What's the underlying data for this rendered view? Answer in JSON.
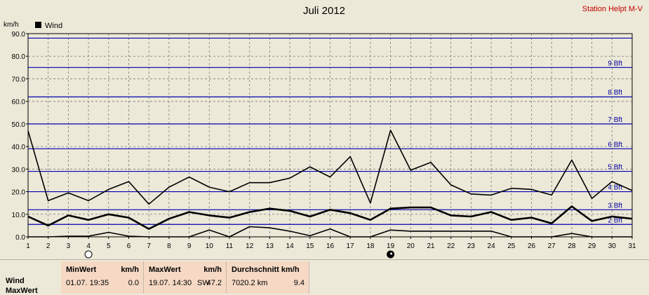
{
  "header": {
    "title": "Juli 2012",
    "station": "Station Helpt M-V"
  },
  "colors": {
    "grid_blue": "#0000b0",
    "line": "#000000",
    "panel_bg": "#f5d9c4",
    "station_text": "#c00000"
  },
  "chart_data": {
    "type": "line",
    "title": "Juli 2012",
    "ylabel": "km/h",
    "xlabel": "",
    "ylim": [
      0,
      90
    ],
    "xlim": [
      1,
      31
    ],
    "x": [
      1,
      2,
      3,
      4,
      5,
      6,
      7,
      8,
      9,
      10,
      11,
      12,
      13,
      14,
      15,
      16,
      17,
      18,
      19,
      20,
      21,
      22,
      23,
      24,
      25,
      26,
      27,
      28,
      29,
      30,
      31
    ],
    "y_ticks": [
      "0.0",
      "10.0",
      "20.0",
      "30.0",
      "40.0",
      "50.0",
      "60.0",
      "70.0",
      "80.0",
      "90.0"
    ],
    "x_ticks": [
      "1",
      "2",
      "3",
      "4",
      "5",
      "6",
      "7",
      "8",
      "9",
      "10",
      "11",
      "12",
      "13",
      "14",
      "15",
      "16",
      "17",
      "18",
      "19",
      "20",
      "21",
      "22",
      "23",
      "24",
      "25",
      "26",
      "27",
      "28",
      "29",
      "30",
      "31"
    ],
    "legend": {
      "label": "Wind",
      "position": "top-left"
    },
    "grid": true,
    "series": [
      {
        "name": "Wind",
        "role": "max",
        "values": [
          47,
          16,
          19.5,
          16,
          21,
          24.5,
          14.5,
          22,
          26.5,
          22,
          20,
          24,
          24,
          26,
          31,
          26.5,
          35.5,
          15,
          47.2,
          29.5,
          33,
          23,
          19,
          18.5,
          21.5,
          21,
          18.5,
          34,
          17,
          24.5,
          20.5
        ]
      },
      {
        "role": "avg",
        "values": [
          9,
          5,
          9.5,
          7.5,
          10,
          8.5,
          3.5,
          8,
          11,
          9.5,
          8.5,
          11,
          12.5,
          11.5,
          9,
          12,
          10.5,
          7.5,
          12.5,
          13,
          13,
          9.5,
          9,
          11,
          7.5,
          8.5,
          6,
          13.5,
          7,
          9,
          8
        ]
      },
      {
        "role": "min",
        "values": [
          0,
          0,
          0.3,
          0.3,
          2,
          0.3,
          0,
          0,
          0,
          3,
          0,
          4.5,
          4,
          2.5,
          0.5,
          3.5,
          0,
          0,
          3,
          2.5,
          2.5,
          2.5,
          2.5,
          2.5,
          0,
          0,
          0,
          1.5,
          0,
          0,
          0
        ]
      }
    ],
    "beaufort": [
      {
        "label": "2 Bft",
        "value": 5.5
      },
      {
        "label": "3 Bft",
        "value": 12
      },
      {
        "label": "4 Bft",
        "value": 20
      },
      {
        "label": "5 Bft",
        "value": 29
      },
      {
        "label": "6 Bft",
        "value": 39
      },
      {
        "label": "7 Bft",
        "value": 50
      },
      {
        "label": "8 Bft",
        "value": 62
      },
      {
        "label": "9 Bft",
        "value": 75
      },
      {
        "label": "",
        "value": 88
      }
    ],
    "moon_phases": [
      {
        "day": 4,
        "phase": "full"
      },
      {
        "day": 19,
        "phase": "new"
      }
    ]
  },
  "stats": {
    "row_wind": "Wind",
    "row_maxwert": "MaxWert",
    "min": {
      "head": "MinWert",
      "unit": "km/h",
      "date": "01.07.  19:35",
      "value": "0.0"
    },
    "max": {
      "head": "MaxWert",
      "unit": "km/h",
      "date": "19.07.  14:30",
      "dir": "SW",
      "value": "47.2"
    },
    "avg": {
      "head": "Durchschnitt km/h",
      "distance": "7020.2 km",
      "value": "9.4"
    }
  }
}
